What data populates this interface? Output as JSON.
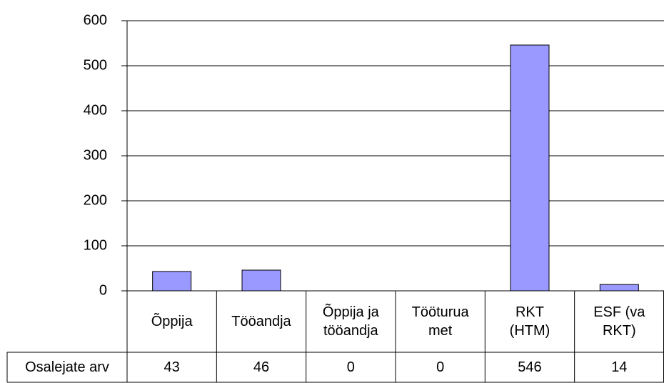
{
  "chart_data": {
    "type": "bar",
    "categories": [
      "Õppija",
      "Tööandja",
      "Õppija ja tööandja",
      "Tööturua met",
      "RKT (HTM)",
      "ESF (va RKT)"
    ],
    "series": [
      {
        "name": "Osalejate arv",
        "color": "#9999ff",
        "values": [
          43,
          46,
          0,
          0,
          546,
          14
        ]
      }
    ],
    "ylim": [
      0,
      600
    ],
    "yticks": [
      0,
      100,
      200,
      300,
      400,
      500,
      600
    ],
    "grid": true
  }
}
